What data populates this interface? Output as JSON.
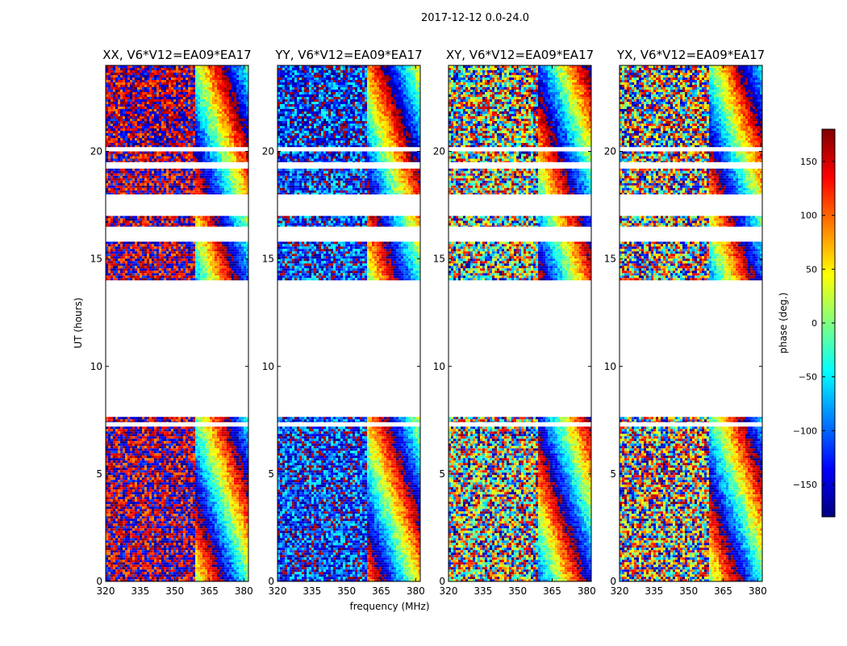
{
  "chart_data": {
    "type": "heatmap",
    "suptitle": "2017-12-12 0.0-24.0",
    "xlabel": "frequency (MHz)",
    "ylabel": "UT (hours)",
    "xlim": [
      320,
      382
    ],
    "ylim": [
      0,
      24
    ],
    "xticks": [
      "320",
      "335",
      "350",
      "365",
      "380"
    ],
    "yticks": [
      "0",
      "5",
      "10",
      "15",
      "20"
    ],
    "panels": [
      {
        "title": "XX, V6*V12=EA09*EA17",
        "base_phase": 170
      },
      {
        "title": "YY, V6*V12=EA09*EA17",
        "base_phase": -120
      },
      {
        "title": "XY, V6*V12=EA09*EA17",
        "base_phase": 40
      },
      {
        "title": "YX, V6*V12=EA09*EA17",
        "base_phase": 150
      }
    ],
    "data_segments_ut": [
      [
        0,
        7.2
      ],
      [
        7.4,
        7.65
      ],
      [
        14,
        15.8
      ],
      [
        16.5,
        17
      ],
      [
        18,
        19.2
      ],
      [
        19.5,
        20
      ],
      [
        20.2,
        24
      ]
    ],
    "colorbar": {
      "label": "phase (deg.)",
      "range": [
        -180,
        180
      ],
      "ticks": [
        "150",
        "100",
        "50",
        "0",
        "−50",
        "−100",
        "−150"
      ],
      "tick_values": [
        150,
        100,
        50,
        0,
        -50,
        -100,
        -150
      ],
      "colormap": [
        "#00007f",
        "#0000ff",
        "#0080ff",
        "#00ffff",
        "#80ff80",
        "#ffff00",
        "#ff8000",
        "#ff0000",
        "#7f0000"
      ]
    }
  }
}
